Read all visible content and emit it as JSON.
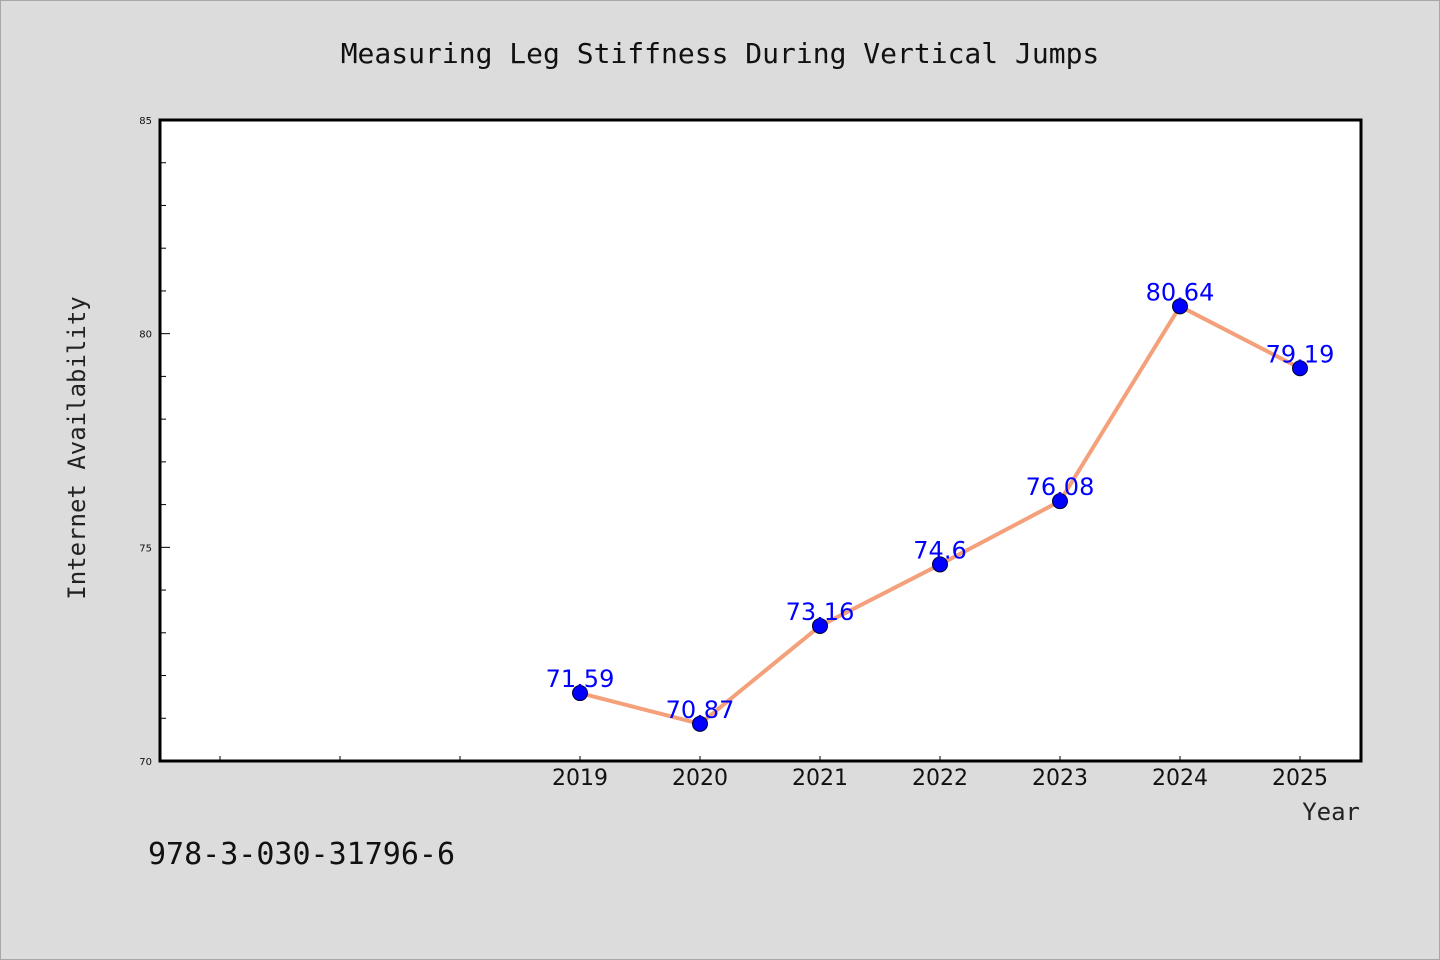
{
  "chart_data": {
    "type": "line",
    "title": "Measuring Leg Stiffness During Vertical Jumps",
    "xlabel": "Year",
    "ylabel": "Internet Availability",
    "categories": [
      "2019",
      "2020",
      "2021",
      "2022",
      "2023",
      "2024",
      "2025"
    ],
    "series": [
      {
        "values": [
          71.59,
          70.87,
          73.16,
          74.6,
          76.08,
          80.64,
          79.19
        ]
      }
    ],
    "data_labels": [
      "71.59",
      "70.87",
      "73.16",
      "74.6",
      "76.08",
      "80.64",
      "79.19"
    ],
    "ylim": [
      70,
      85
    ],
    "yticks": [
      70,
      75,
      80,
      85
    ],
    "ytick_labels": [
      "70",
      "75",
      "80",
      "85"
    ],
    "xlim_categories_span": 10,
    "grid": false,
    "line_color": "#f4a07a",
    "marker_color": "#0000ff",
    "label_color": "#0000ff"
  },
  "footer": {
    "isbn": "978-3-030-31796-6"
  }
}
